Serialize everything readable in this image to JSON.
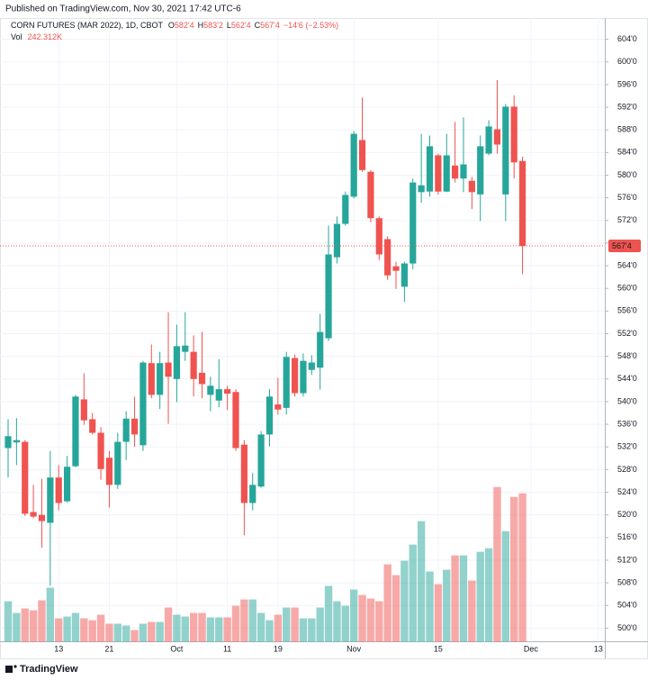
{
  "header": {
    "published": "Published on TradingView.com, Nov 30, 2021 17:42 UTC-6",
    "footer": "TradingView"
  },
  "chart_data": {
    "type": "candlestick",
    "title": "CORN FUTURES (MAR 2022), 1D, CBOT",
    "ohlc_legend": [
      {
        "key": "O",
        "value": "582'4"
      },
      {
        "key": "H",
        "value": "583'2"
      },
      {
        "key": "L",
        "value": "562'4"
      },
      {
        "key": "C",
        "value": "567'4"
      }
    ],
    "change_label": "−14'6 (−2.53%)",
    "last_price_label": "567'4",
    "up_color": "#26a69a",
    "down_color": "#ef5350",
    "grid": true,
    "categories": [
      null,
      null,
      null,
      null,
      null,
      null,
      "13",
      null,
      null,
      null,
      null,
      null,
      "21",
      null,
      null,
      null,
      null,
      null,
      null,
      null,
      "Oct",
      null,
      null,
      null,
      null,
      null,
      "11",
      null,
      null,
      null,
      null,
      null,
      "19",
      null,
      null,
      null,
      null,
      null,
      null,
      null,
      null,
      "Nov",
      null,
      null,
      null,
      null,
      null,
      null,
      null,
      null,
      null,
      "15",
      null,
      null,
      null,
      null,
      null,
      null,
      null,
      null,
      null,
      null,
      "Dec",
      null,
      null,
      null,
      null,
      null,
      null,
      null,
      "13"
    ],
    "open": [
      531.8,
      532.8,
      532.9,
      520.5,
      520.0,
      518.6,
      526.6,
      522.4,
      528.6,
      540.4,
      536.9,
      534.5,
      530.1,
      525.3,
      532.9,
      537.0,
      532.3,
      546.8,
      541.2,
      546.9,
      544.0,
      548.8,
      548.8,
      545.1,
      541.2,
      540.2,
      542.2,
      541.7,
      532.4,
      522.1,
      525.0,
      534.2,
      539.5,
      538.9,
      547.7,
      541.5,
      545.6,
      546.0,
      551.2,
      565.5,
      571.4,
      576.2,
      586.2,
      580.6,
      572.4,
      568.7,
      563.9,
      560.3,
      564.4,
      577.0,
      577.1,
      583.5,
      577.1,
      581.7,
      579.4,
      579.0,
      576.6,
      583.8,
      588.1,
      576.6,
      592.1,
      582.5,
      null,
      null,
      null,
      null,
      null,
      null,
      null,
      null,
      null
    ],
    "high": [
      536.9,
      537.1,
      533.2,
      525.3,
      526.4,
      531.3,
      528.8,
      530.4,
      541.2,
      545.0,
      538.0,
      535.5,
      531.3,
      534.5,
      538.3,
      540.9,
      547.2,
      550.1,
      548.8,
      555.8,
      553.6,
      555.8,
      551.7,
      552.3,
      544.4,
      547.5,
      542.8,
      542.2,
      533.2,
      527.4,
      534.8,
      542.2,
      544.2,
      548.8,
      548.3,
      548.5,
      548.2,
      555.5,
      571.1,
      572.7,
      577.1,
      587.8,
      593.7,
      580.9,
      572.7,
      569.2,
      564.7,
      564.7,
      579.4,
      587.3,
      587.0,
      583.8,
      587.3,
      589.4,
      590.2,
      579.7,
      587.0,
      589.7,
      596.8,
      592.6,
      594.1,
      583.25,
      null,
      null,
      null,
      null,
      null,
      null,
      null,
      null,
      null
    ],
    "low": [
      526.6,
      528.8,
      519.8,
      519.4,
      514.2,
      507.5,
      520.8,
      522.2,
      528.4,
      535.9,
      534.2,
      526.2,
      521.3,
      524.6,
      529.7,
      532.0,
      531.3,
      540.6,
      538.7,
      536.1,
      539.9,
      547.2,
      540.9,
      540.6,
      538.3,
      539.0,
      538.5,
      531.3,
      516.4,
      520.8,
      524.8,
      532.1,
      537.7,
      537.7,
      540.9,
      540.9,
      544.7,
      542.1,
      550.7,
      564.4,
      571.1,
      575.9,
      580.6,
      571.7,
      565.0,
      561.5,
      559.9,
      557.6,
      563.4,
      575.1,
      576.2,
      576.6,
      577.0,
      578.7,
      577.0,
      574.0,
      571.9,
      583.5,
      583.8,
      571.9,
      579.4,
      562.5,
      null,
      null,
      null,
      null,
      null,
      null,
      null,
      null,
      null
    ],
    "close": [
      533.9,
      533.2,
      520.2,
      519.7,
      518.9,
      526.6,
      522.1,
      528.5,
      540.9,
      536.7,
      534.5,
      528.1,
      525.3,
      532.9,
      537.0,
      534.2,
      546.9,
      541.2,
      546.8,
      544.4,
      549.8,
      549.9,
      544.0,
      543.1,
      542.8,
      542.2,
      541.4,
      531.8,
      522.1,
      525.3,
      534.2,
      540.9,
      538.6,
      547.9,
      541.5,
      547.2,
      546.9,
      552.3,
      566.0,
      571.4,
      576.5,
      587.3,
      580.9,
      572.4,
      566.0,
      562.3,
      563.1,
      564.4,
      578.7,
      578.2,
      585.1,
      577.1,
      583.5,
      579.4,
      581.9,
      577.0,
      585.1,
      588.6,
      585.4,
      592.1,
      582.25,
      567.5,
      null,
      null,
      null,
      null,
      null,
      null,
      null,
      null,
      null
    ],
    "volume": {
      "name": "Vol",
      "last_label": "242.312K",
      "values": [
        66.1,
        47.0,
        54.3,
        51.4,
        67.6,
        88.1,
        38.2,
        41.1,
        47.0,
        38.2,
        35.2,
        44.1,
        29.4,
        29.4,
        26.4,
        19.1,
        29.4,
        32.3,
        32.3,
        55.8,
        44.1,
        41.1,
        47.0,
        47.0,
        39.7,
        39.7,
        39.7,
        58.7,
        69.0,
        69.0,
        47.0,
        35.2,
        44.1,
        55.8,
        55.8,
        38.2,
        38.2,
        55.8,
        91.1,
        66.1,
        58.7,
        85.2,
        76.4,
        70.5,
        66.1,
        126.3,
        108.7,
        132.2,
        158.6,
        196.8,
        114.6,
        94.0,
        117.5,
        141.0,
        141.0,
        99.9,
        146.9,
        152.7,
        252.6,
        180.6,
        236.4,
        242.312,
        null,
        null,
        null,
        null,
        null,
        null,
        null,
        null,
        null
      ]
    },
    "ylim": [
      497.6,
      606.4
    ],
    "yticks": [
      {
        "value": 500,
        "label": "500'0"
      },
      {
        "value": 504,
        "label": "504'0"
      },
      {
        "value": 508,
        "label": "508'0"
      },
      {
        "value": 512,
        "label": "512'0"
      },
      {
        "value": 516,
        "label": "516'0"
      },
      {
        "value": 520,
        "label": "520'0"
      },
      {
        "value": 524,
        "label": "524'0"
      },
      {
        "value": 528,
        "label": "528'0"
      },
      {
        "value": 532,
        "label": "532'0"
      },
      {
        "value": 536,
        "label": "536'0"
      },
      {
        "value": 540,
        "label": "540'0"
      },
      {
        "value": 544,
        "label": "544'0"
      },
      {
        "value": 548,
        "label": "548'0"
      },
      {
        "value": 552,
        "label": "552'0"
      },
      {
        "value": 556,
        "label": "556'0"
      },
      {
        "value": 560,
        "label": "560'0"
      },
      {
        "value": 564,
        "label": "564'0"
      },
      {
        "value": 568,
        "label": "568'0"
      },
      {
        "value": 572,
        "label": "572'0"
      },
      {
        "value": 576,
        "label": "576'0"
      },
      {
        "value": 580,
        "label": "580'0"
      },
      {
        "value": 584,
        "label": "584'0"
      },
      {
        "value": 588,
        "label": "588'0"
      },
      {
        "value": 592,
        "label": "592'0"
      },
      {
        "value": 596,
        "label": "596'0"
      },
      {
        "value": 600,
        "label": "600'0"
      },
      {
        "value": 604,
        "label": "604'0"
      }
    ]
  }
}
